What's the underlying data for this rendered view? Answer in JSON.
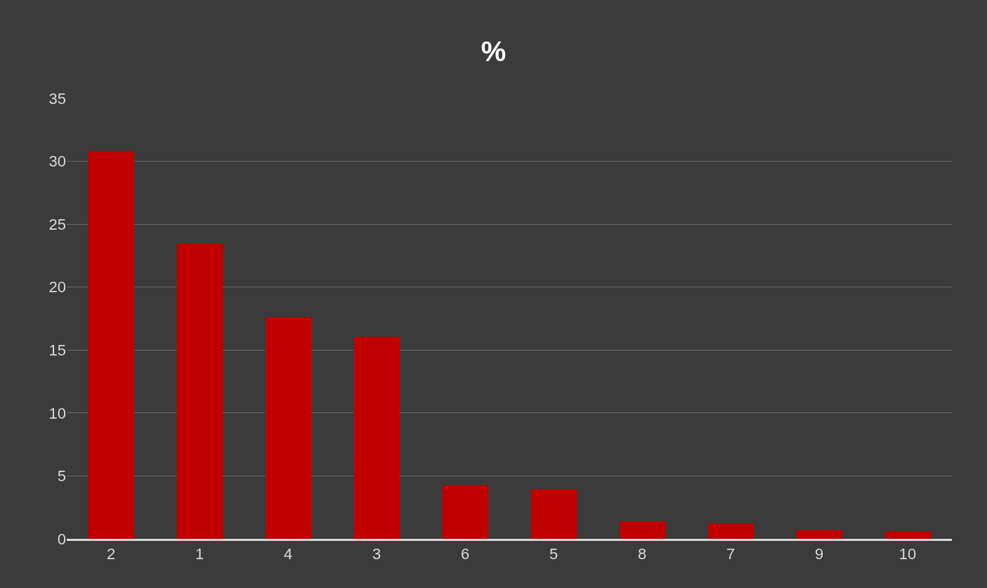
{
  "chart_data": {
    "type": "bar",
    "title": "%",
    "categories": [
      "2",
      "1",
      "4",
      "3",
      "6",
      "5",
      "8",
      "7",
      "9",
      "10"
    ],
    "values": [
      30.8,
      23.5,
      17.6,
      16.05,
      4.25,
      3.95,
      1.4,
      1.2,
      0.7,
      0.6
    ],
    "color": "#c00000",
    "ylim": [
      0,
      35
    ],
    "yticks": [
      0,
      5,
      10,
      15,
      20,
      25,
      30,
      35
    ],
    "grid": "y"
  }
}
